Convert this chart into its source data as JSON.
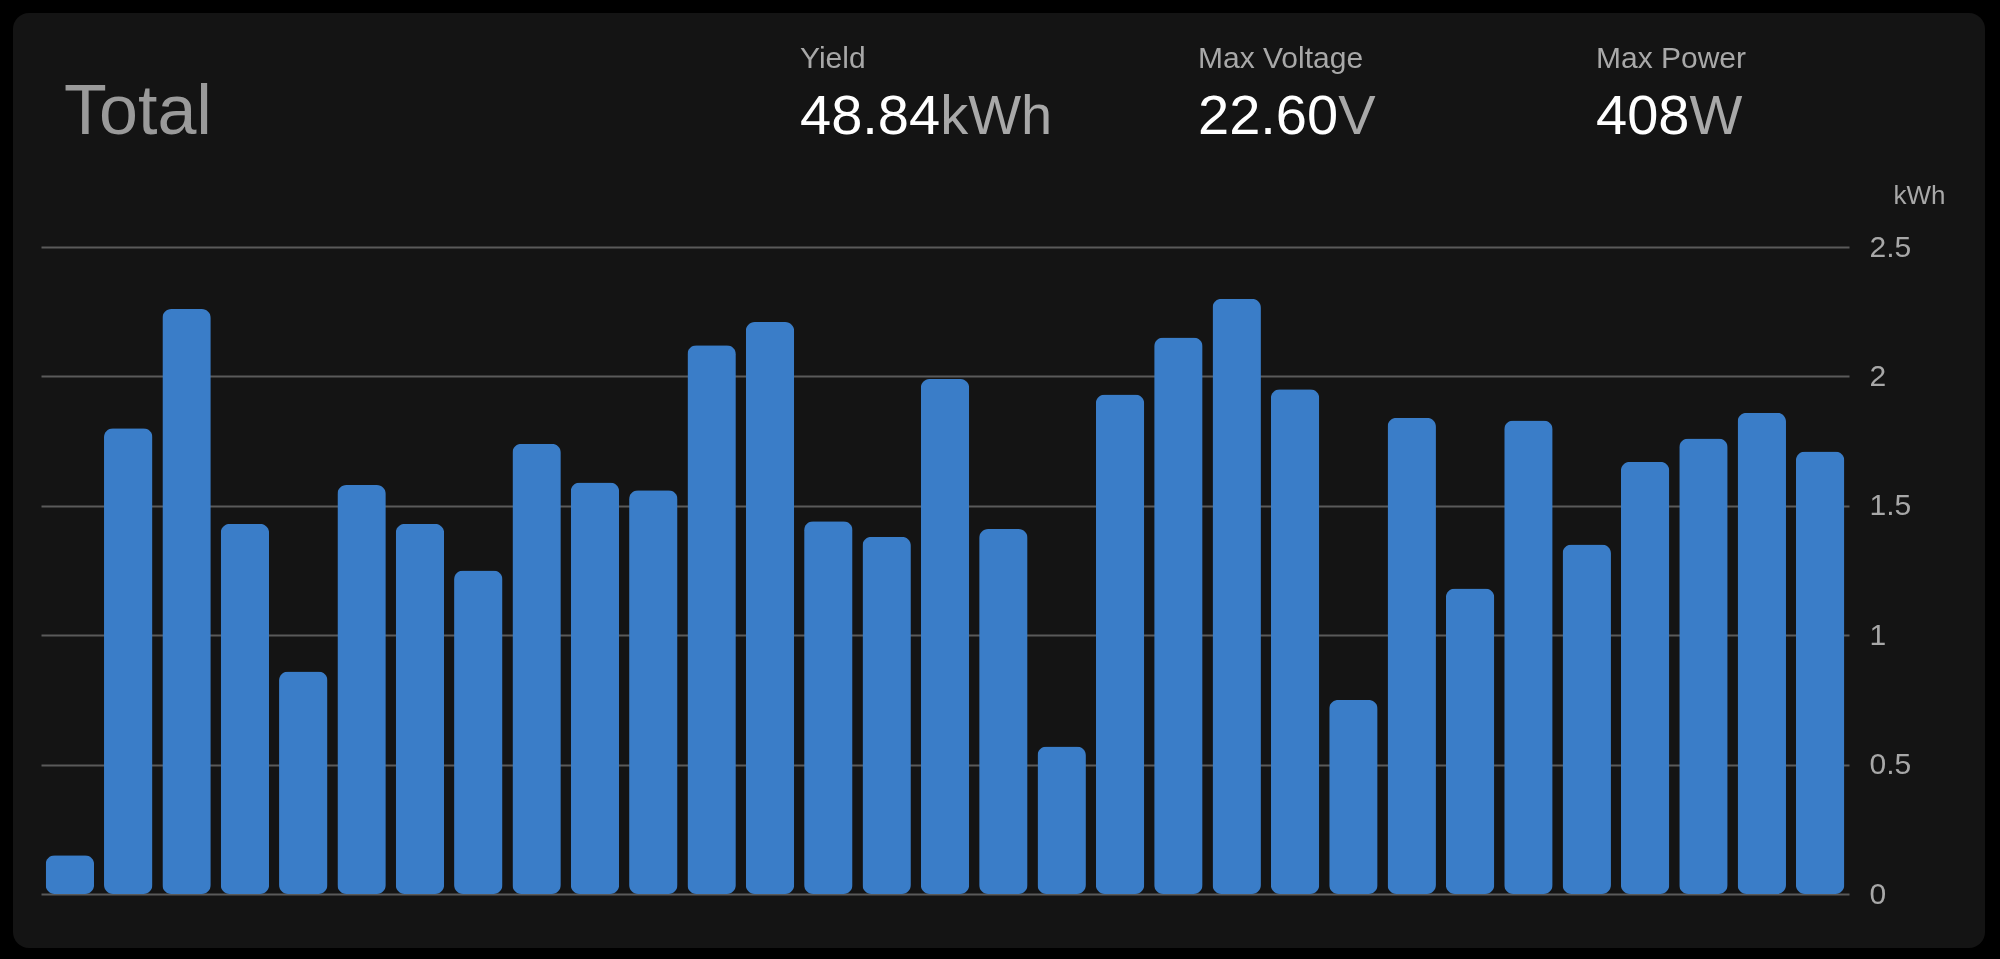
{
  "chart_data": {
    "type": "bar",
    "title": "Total",
    "ylabel": "kWh",
    "annotations": [
      "Yield",
      "48.84",
      "kWh",
      "Max Voltage",
      "22.60",
      "V",
      "Max Power",
      "408",
      "W"
    ],
    "categories": [
      null,
      null,
      null,
      null,
      null,
      null,
      null,
      null,
      null,
      null,
      null,
      null,
      null,
      null,
      null,
      null,
      null,
      null,
      null,
      null,
      null,
      null,
      null,
      null,
      null,
      null,
      null,
      null,
      null,
      null,
      null
    ],
    "values": [
      0.15,
      1.8,
      2.26,
      1.43,
      0.86,
      1.58,
      1.43,
      1.25,
      1.74,
      1.59,
      1.56,
      2.12,
      2.21,
      1.44,
      1.38,
      1.99,
      1.41,
      0.57,
      1.93,
      2.15,
      2.3,
      1.95,
      0.75,
      1.84,
      1.18,
      1.83,
      1.35,
      1.67,
      1.76,
      1.86,
      1.71
    ],
    "color": "#3a7dc8",
    "ylim": [
      0,
      2.5
    ],
    "yticks": [
      0,
      0.5,
      1,
      1.5,
      2,
      2.5
    ],
    "grid": "y"
  }
}
